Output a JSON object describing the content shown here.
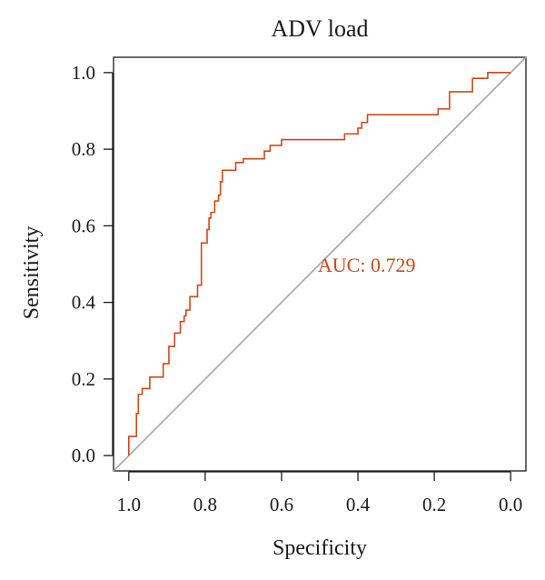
{
  "chart_data": {
    "type": "line",
    "title": "ADV load",
    "xlabel": "Specificity",
    "ylabel": "Sensitivity",
    "xlim": [
      1.04,
      -0.04
    ],
    "ylim": [
      -0.04,
      1.04
    ],
    "x_reversed": true,
    "xticks": [
      "1.0",
      "0.8",
      "0.6",
      "0.4",
      "0.2",
      "0.0"
    ],
    "yticks": [
      "0.0",
      "0.2",
      "0.4",
      "0.6",
      "0.8",
      "1.0"
    ],
    "grid": false,
    "legend": "none",
    "annotation": "AUC: 0.729",
    "colors": {
      "roc": "#cc4a1a",
      "diagonal": "#a6a6a6",
      "axis": "#1a1a1a"
    },
    "series": [
      {
        "points": [
          [
            1.0,
            0.0
          ],
          [
            1.0,
            0.05
          ],
          [
            0.98,
            0.05
          ],
          [
            0.98,
            0.11
          ],
          [
            0.975,
            0.11
          ],
          [
            0.975,
            0.16
          ],
          [
            0.965,
            0.16
          ],
          [
            0.965,
            0.175
          ],
          [
            0.945,
            0.175
          ],
          [
            0.945,
            0.205
          ],
          [
            0.91,
            0.205
          ],
          [
            0.91,
            0.24
          ],
          [
            0.895,
            0.24
          ],
          [
            0.895,
            0.285
          ],
          [
            0.88,
            0.285
          ],
          [
            0.88,
            0.32
          ],
          [
            0.865,
            0.32
          ],
          [
            0.865,
            0.35
          ],
          [
            0.855,
            0.35
          ],
          [
            0.855,
            0.365
          ],
          [
            0.85,
            0.365
          ],
          [
            0.85,
            0.38
          ],
          [
            0.84,
            0.38
          ],
          [
            0.84,
            0.415
          ],
          [
            0.82,
            0.415
          ],
          [
            0.82,
            0.445
          ],
          [
            0.81,
            0.445
          ],
          [
            0.81,
            0.555
          ],
          [
            0.795,
            0.555
          ],
          [
            0.795,
            0.59
          ],
          [
            0.79,
            0.59
          ],
          [
            0.79,
            0.62
          ],
          [
            0.785,
            0.62
          ],
          [
            0.785,
            0.635
          ],
          [
            0.775,
            0.635
          ],
          [
            0.775,
            0.665
          ],
          [
            0.765,
            0.665
          ],
          [
            0.765,
            0.68
          ],
          [
            0.76,
            0.68
          ],
          [
            0.76,
            0.715
          ],
          [
            0.755,
            0.715
          ],
          [
            0.755,
            0.745
          ],
          [
            0.72,
            0.745
          ],
          [
            0.72,
            0.765
          ],
          [
            0.7,
            0.765
          ],
          [
            0.7,
            0.775
          ],
          [
            0.645,
            0.775
          ],
          [
            0.645,
            0.795
          ],
          [
            0.63,
            0.795
          ],
          [
            0.63,
            0.81
          ],
          [
            0.6,
            0.81
          ],
          [
            0.6,
            0.825
          ],
          [
            0.435,
            0.825
          ],
          [
            0.435,
            0.84
          ],
          [
            0.4,
            0.84
          ],
          [
            0.4,
            0.855
          ],
          [
            0.39,
            0.855
          ],
          [
            0.39,
            0.87
          ],
          [
            0.375,
            0.87
          ],
          [
            0.375,
            0.89
          ],
          [
            0.19,
            0.89
          ],
          [
            0.19,
            0.905
          ],
          [
            0.16,
            0.905
          ],
          [
            0.16,
            0.95
          ],
          [
            0.1,
            0.95
          ],
          [
            0.1,
            0.985
          ],
          [
            0.06,
            0.985
          ],
          [
            0.06,
            1.0
          ],
          [
            0.0,
            1.0
          ]
        ]
      },
      {
        "points": [
          [
            1.04,
            -0.04
          ],
          [
            -0.04,
            1.04
          ]
        ]
      }
    ]
  }
}
